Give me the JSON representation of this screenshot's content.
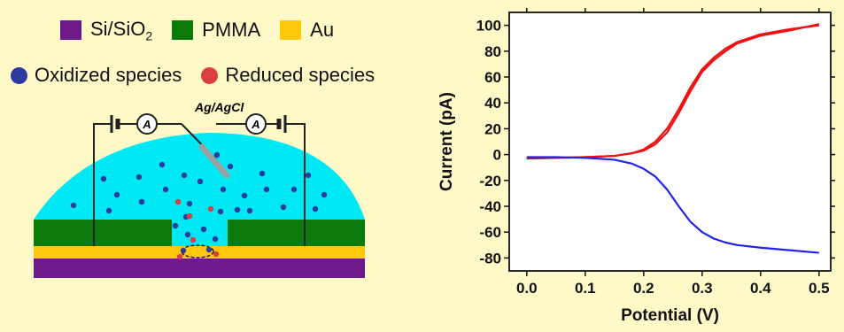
{
  "schematic": {
    "legend_materials": [
      {
        "label": "Si/SiO",
        "sub": "2",
        "color": "#6e1a8a"
      },
      {
        "label": "PMMA",
        "sub": "",
        "color": "#0b7a0b"
      },
      {
        "label": "Au",
        "sub": "",
        "color": "#ffc80a"
      }
    ],
    "legend_species": [
      {
        "label": "Oxidized species",
        "color": "#2d3aa0"
      },
      {
        "label": "Reduced species",
        "color": "#d94040"
      }
    ],
    "electrode_label": "Ag/AgCl",
    "ammeter_symbol": "A",
    "colors": {
      "solution": "#00e8f4",
      "pmma": "#0b7a0b",
      "gold": "#ffc80a",
      "substrate": "#6e1a8a",
      "oxidized": "#2d3aa0",
      "reduced": "#d94040"
    }
  },
  "chart_data": {
    "type": "line",
    "xlabel": "Potential (V)",
    "ylabel": "Current (pA)",
    "xlim": [
      -0.03,
      0.52
    ],
    "ylim": [
      -90,
      110
    ],
    "xticks": [
      "0.0",
      "0.1",
      "0.2",
      "0.3",
      "0.4",
      "0.5"
    ],
    "yticks": [
      "-80",
      "-60",
      "-40",
      "-20",
      "0",
      "20",
      "40",
      "60",
      "80",
      "100"
    ],
    "series": [
      {
        "color": "#ee1111",
        "x": [
          0.0,
          0.05,
          0.1,
          0.15,
          0.18,
          0.2,
          0.22,
          0.24,
          0.26,
          0.28,
          0.3,
          0.32,
          0.34,
          0.36,
          0.4,
          0.45,
          0.5
        ],
        "y": [
          -3,
          -2.5,
          -2,
          -1,
          1,
          4,
          10,
          20,
          35,
          52,
          66,
          75,
          82,
          87,
          93,
          97,
          100
        ]
      },
      {
        "color": "#ee1111",
        "x": [
          0.0,
          0.05,
          0.1,
          0.15,
          0.18,
          0.2,
          0.22,
          0.24,
          0.26,
          0.28,
          0.3,
          0.32,
          0.34,
          0.36,
          0.4,
          0.45,
          0.5
        ],
        "y": [
          -3,
          -2.5,
          -2,
          -1,
          1,
          3,
          8,
          17,
          32,
          49,
          64,
          73,
          80,
          86,
          92,
          96,
          101
        ]
      },
      {
        "color": "#2222ee",
        "x": [
          0.0,
          0.05,
          0.1,
          0.15,
          0.18,
          0.2,
          0.22,
          0.24,
          0.26,
          0.28,
          0.3,
          0.32,
          0.34,
          0.36,
          0.4,
          0.45,
          0.5
        ],
        "y": [
          -2,
          -2,
          -2.5,
          -4,
          -7,
          -11,
          -17,
          -27,
          -40,
          -52,
          -60,
          -65,
          -68,
          -70,
          -72,
          -74,
          -76
        ]
      }
    ]
  }
}
